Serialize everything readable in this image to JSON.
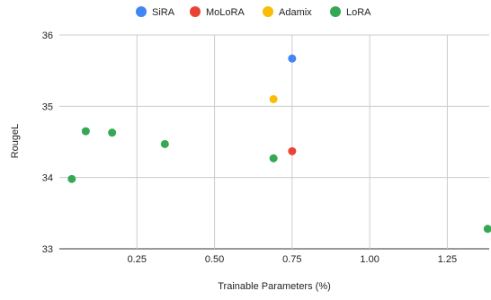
{
  "chart_data": {
    "type": "scatter",
    "title": "",
    "xlabel": "Trainable Parameters (%)",
    "ylabel": "RougeL",
    "xlim": [
      0.0,
      1.385
    ],
    "ylim": [
      33,
      36
    ],
    "x_ticks": [
      0.25,
      0.5,
      0.75,
      1.0,
      1.25
    ],
    "x_tick_labels": [
      "0.25",
      "0.50",
      "0.75",
      "1.00",
      "1.25"
    ],
    "y_ticks": [
      33,
      34,
      35,
      36
    ],
    "y_tick_labels": [
      "33",
      "34",
      "35",
      "36"
    ],
    "grid": true,
    "legend_position": "top",
    "series": [
      {
        "name": "SiRA",
        "color": "#4285F4",
        "points": [
          {
            "x": 0.75,
            "y": 35.67
          }
        ]
      },
      {
        "name": "MoLoRA",
        "color": "#EA4335",
        "points": [
          {
            "x": 0.75,
            "y": 34.37
          }
        ]
      },
      {
        "name": "Adamix",
        "color": "#FBBC04",
        "points": [
          {
            "x": 0.69,
            "y": 35.1
          }
        ]
      },
      {
        "name": "LoRA",
        "color": "#34A853",
        "points": [
          {
            "x": 0.04,
            "y": 33.98
          },
          {
            "x": 0.085,
            "y": 34.65
          },
          {
            "x": 0.17,
            "y": 34.63
          },
          {
            "x": 0.34,
            "y": 34.47
          },
          {
            "x": 0.69,
            "y": 34.27
          },
          {
            "x": 1.38,
            "y": 33.28
          }
        ]
      }
    ]
  }
}
